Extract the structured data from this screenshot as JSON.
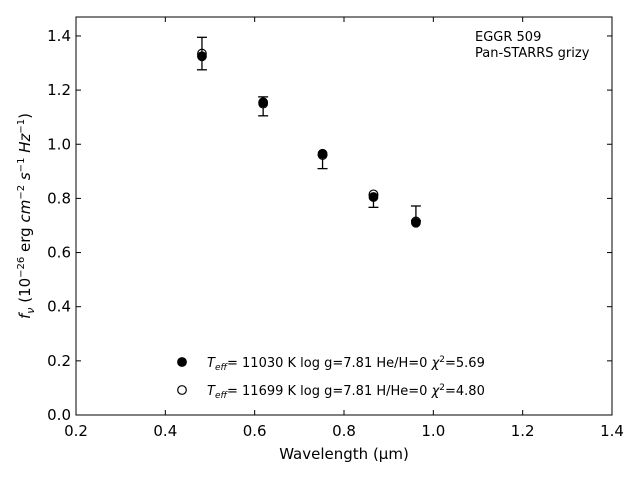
{
  "chart_data": {
    "type": "scatter",
    "xlabel": "Wavelength (μm)",
    "ylabel": "f_ν (10^-26 erg cm^-2 s^-1 Hz^-1)",
    "xlim": [
      0.2,
      1.4
    ],
    "ylim": [
      0.0,
      1.47
    ],
    "xticks": [
      0.2,
      0.4,
      0.6,
      0.8,
      1.0,
      1.2,
      1.4
    ],
    "xtick_labels": [
      "0.2",
      "0.4",
      "0.6",
      "0.8",
      "1.0",
      "1.2",
      "1.4"
    ],
    "yticks": [
      0.0,
      0.2,
      0.4,
      0.6,
      0.8,
      1.0,
      1.2,
      1.4
    ],
    "ytick_labels": [
      "0.0",
      "0.2",
      "0.4",
      "0.6",
      "0.8",
      "1.0",
      "1.2",
      "1.4"
    ],
    "grid": false,
    "annotations": [
      "EGGR 509",
      "Pan-STARRS grizy"
    ],
    "legend_position": "lower-center",
    "observed": {
      "x": [
        0.482,
        0.619,
        0.752,
        0.866,
        0.961
      ],
      "y": [
        1.335,
        1.14,
        0.935,
        0.79,
        0.745
      ],
      "yerr": [
        0.06,
        0.035,
        0.025,
        0.023,
        0.027
      ]
    },
    "series": [
      {
        "name": "T_eff= 11030 K  log g=7.81  He/H=0  χ²=5.69",
        "marker": "filled-circle",
        "x": [
          0.482,
          0.619,
          0.752,
          0.866,
          0.961
        ],
        "y": [
          1.325,
          1.155,
          0.965,
          0.805,
          0.71
        ]
      },
      {
        "name": "T_eff= 11699 K  log g=7.81  H/He=0  χ²=4.80",
        "marker": "open-circle",
        "x": [
          0.482,
          0.619,
          0.752,
          0.866,
          0.961
        ],
        "y": [
          1.335,
          1.15,
          0.96,
          0.815,
          0.715
        ]
      }
    ],
    "colors": {
      "marker": "#000000",
      "axes": "#000000",
      "background": "#ffffff"
    }
  }
}
